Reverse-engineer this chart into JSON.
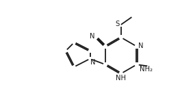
{
  "bg_color": "#ffffff",
  "line_color": "#1a1a1a",
  "line_width": 1.3,
  "font_size": 7.2,
  "fig_width": 2.63,
  "fig_height": 1.62,
  "dpi": 100,
  "xlim": [
    0,
    10
  ],
  "ylim": [
    0,
    6.2
  ]
}
